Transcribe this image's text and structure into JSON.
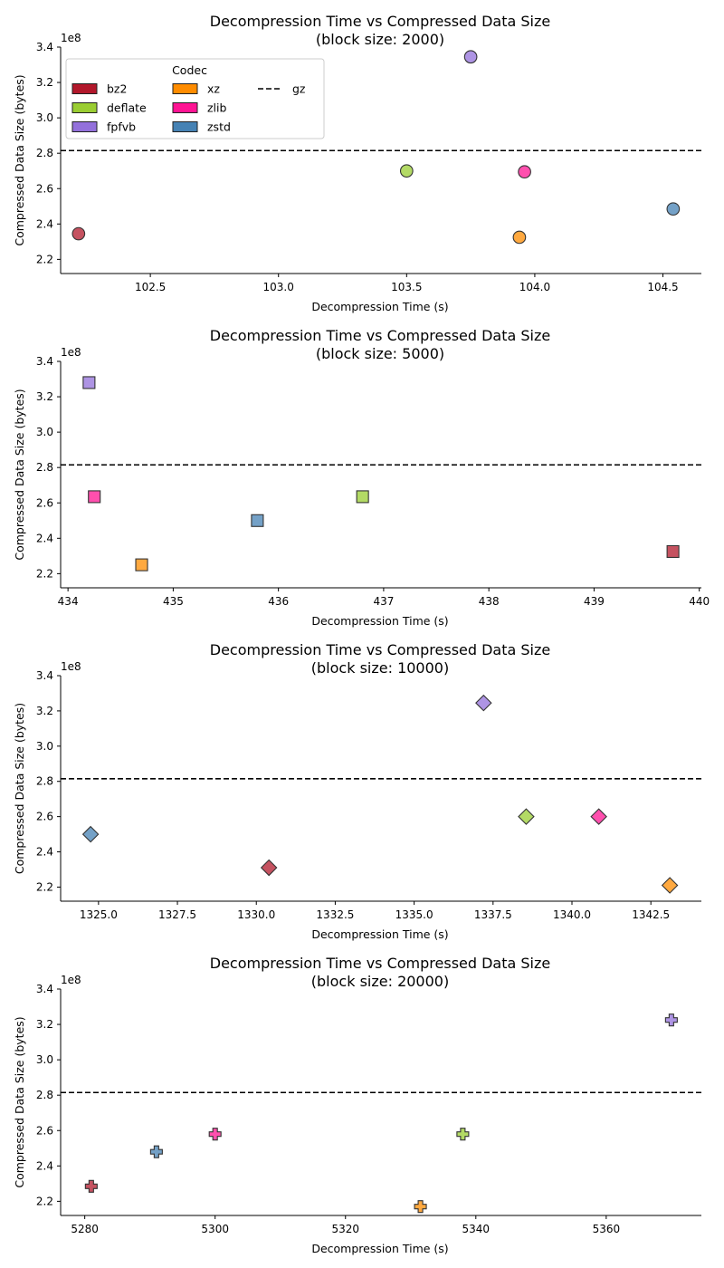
{
  "colors": {
    "bz2": "#b2182b",
    "deflate": "#9acd32",
    "fpfvb": "#9370db",
    "xz": "#ff8c00",
    "zlib": "#ff1493",
    "zstd": "#4682b4",
    "gz": "#000000"
  },
  "chart_data": [
    {
      "type": "scatter",
      "title": "Decompression Time vs Compressed Data Size",
      "subtitle": "(block size: 2000)",
      "xlabel": "Decompression Time (s)",
      "ylabel": "Compressed Data Size (bytes)",
      "y_multiplier": "1e8",
      "xlim": [
        102.15,
        104.65
      ],
      "ylim": [
        2.12,
        3.4
      ],
      "xticks": [
        102.5,
        103.0,
        103.5,
        104.0,
        104.5
      ],
      "xtick_labels": [
        "102.5",
        "103.0",
        "103.5",
        "104.0",
        "104.5"
      ],
      "yticks": [
        2.2,
        2.4,
        2.6,
        2.8,
        3.0,
        3.2,
        3.4
      ],
      "ytick_labels": [
        "2.2",
        "2.4",
        "2.6",
        "2.8",
        "3.0",
        "3.2",
        "3.4"
      ],
      "marker": "circle",
      "gz_line": 2.815,
      "legend": {
        "title": "Codec",
        "location": "upper-left",
        "entries": [
          "bz2",
          "deflate",
          "fpfvb",
          "xz",
          "zlib",
          "zstd",
          "gz"
        ]
      },
      "series": [
        {
          "name": "bz2",
          "x": 102.22,
          "y": 2.345
        },
        {
          "name": "deflate",
          "x": 103.5,
          "y": 2.7
        },
        {
          "name": "fpfvb",
          "x": 103.75,
          "y": 3.345
        },
        {
          "name": "xz",
          "x": 103.94,
          "y": 2.325
        },
        {
          "name": "zlib",
          "x": 103.96,
          "y": 2.695
        },
        {
          "name": "zstd",
          "x": 104.54,
          "y": 2.485
        }
      ]
    },
    {
      "type": "scatter",
      "title": "Decompression Time vs Compressed Data Size",
      "subtitle": "(block size: 5000)",
      "xlabel": "Decompression Time (s)",
      "ylabel": "Compressed Data Size (bytes)",
      "y_multiplier": "1e8",
      "xlim": [
        433.93,
        440.02
      ],
      "ylim": [
        2.12,
        3.4
      ],
      "xticks": [
        434,
        435,
        436,
        437,
        438,
        439,
        440
      ],
      "xtick_labels": [
        "434",
        "435",
        "436",
        "437",
        "438",
        "439",
        "440"
      ],
      "yticks": [
        2.2,
        2.4,
        2.6,
        2.8,
        3.0,
        3.2,
        3.4
      ],
      "ytick_labels": [
        "2.2",
        "2.4",
        "2.6",
        "2.8",
        "3.0",
        "3.2",
        "3.4"
      ],
      "marker": "square",
      "gz_line": 2.815,
      "series": [
        {
          "name": "fpfvb",
          "x": 434.2,
          "y": 3.28
        },
        {
          "name": "zlib",
          "x": 434.25,
          "y": 2.635
        },
        {
          "name": "xz",
          "x": 434.7,
          "y": 2.25
        },
        {
          "name": "zstd",
          "x": 435.8,
          "y": 2.5
        },
        {
          "name": "deflate",
          "x": 436.8,
          "y": 2.635
        },
        {
          "name": "bz2",
          "x": 439.75,
          "y": 2.325
        }
      ]
    },
    {
      "type": "scatter",
      "title": "Decompression Time vs Compressed Data Size",
      "subtitle": "(block size: 10000)",
      "xlabel": "Decompression Time (s)",
      "ylabel": "Compressed Data Size (bytes)",
      "y_multiplier": "1e8",
      "xlim": [
        1323.8,
        1344.1
      ],
      "ylim": [
        2.12,
        3.4
      ],
      "xticks": [
        1325.0,
        1327.5,
        1330.0,
        1332.5,
        1335.0,
        1337.5,
        1340.0,
        1342.5
      ],
      "xtick_labels": [
        "1325.0",
        "1327.5",
        "1330.0",
        "1332.5",
        "1335.0",
        "1337.5",
        "1340.0",
        "1342.5"
      ],
      "yticks": [
        2.2,
        2.4,
        2.6,
        2.8,
        3.0,
        3.2,
        3.4
      ],
      "ytick_labels": [
        "2.2",
        "2.4",
        "2.6",
        "2.8",
        "3.0",
        "3.2",
        "3.4"
      ],
      "marker": "diamond",
      "gz_line": 2.815,
      "series": [
        {
          "name": "zstd",
          "x": 1324.75,
          "y": 2.5
        },
        {
          "name": "bz2",
          "x": 1330.4,
          "y": 2.31
        },
        {
          "name": "fpfvb",
          "x": 1337.2,
          "y": 3.245
        },
        {
          "name": "deflate",
          "x": 1338.55,
          "y": 2.6
        },
        {
          "name": "zlib",
          "x": 1340.85,
          "y": 2.6
        },
        {
          "name": "xz",
          "x": 1343.1,
          "y": 2.21
        }
      ]
    },
    {
      "type": "scatter",
      "title": "Decompression Time vs Compressed Data Size",
      "subtitle": "(block size: 20000)",
      "xlabel": "Decompression Time (s)",
      "ylabel": "Compressed Data Size (bytes)",
      "y_multiplier": "1e8",
      "xlim": [
        5276.3,
        5374.6
      ],
      "ylim": [
        2.12,
        3.4
      ],
      "xticks": [
        5280,
        5300,
        5320,
        5340,
        5360
      ],
      "xtick_labels": [
        "5280",
        "5300",
        "5320",
        "5340",
        "5360"
      ],
      "yticks": [
        2.2,
        2.4,
        2.6,
        2.8,
        3.0,
        3.2,
        3.4
      ],
      "ytick_labels": [
        "2.2",
        "2.4",
        "2.6",
        "2.8",
        "3.0",
        "3.2",
        "3.4"
      ],
      "marker": "plus",
      "gz_line": 2.815,
      "series": [
        {
          "name": "bz2",
          "x": 5281,
          "y": 2.285
        },
        {
          "name": "zstd",
          "x": 5291,
          "y": 2.48
        },
        {
          "name": "zlib",
          "x": 5300,
          "y": 2.58
        },
        {
          "name": "xz",
          "x": 5331.5,
          "y": 2.17
        },
        {
          "name": "deflate",
          "x": 5338,
          "y": 2.58
        },
        {
          "name": "fpfvb",
          "x": 5370,
          "y": 3.225
        }
      ]
    }
  ]
}
